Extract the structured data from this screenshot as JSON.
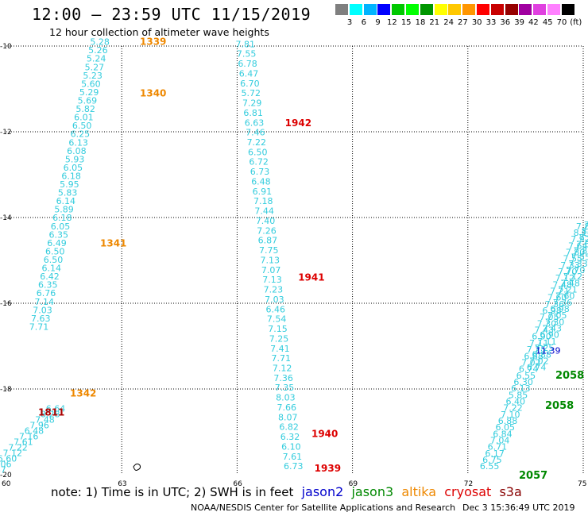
{
  "title": "12:00 – 23:59 UTC 11/15/2019",
  "subtitle": "12 hour collection of altimeter wave heights",
  "legend": {
    "colors": [
      "#7f7f7f",
      "#00ffff",
      "#00b4ff",
      "#0000ff",
      "#00c800",
      "#00ff00",
      "#009600",
      "#ffff00",
      "#ffc800",
      "#ff9600",
      "#ff0000",
      "#c80000",
      "#960000",
      "#a000a0",
      "#e040e0",
      "#ff80ff",
      "#000000"
    ],
    "labels": [
      "3",
      "6",
      "9",
      "12",
      "15",
      "18",
      "21",
      "24",
      "27",
      "30",
      "33",
      "36",
      "39",
      "42",
      "45",
      "70",
      "(ft)"
    ]
  },
  "map": {
    "lon_min": 60,
    "lon_max": 75,
    "lat_min": -20,
    "lat_max": -10,
    "x_ticks": [
      "60",
      "63",
      "66",
      "69",
      "72",
      "75"
    ],
    "y_ticks": [
      "-10",
      "-12",
      "-14",
      "-16",
      "-18",
      "-20"
    ],
    "grid_lons": [
      63,
      66,
      69,
      72
    ],
    "grid_lats": [
      -12,
      -14,
      -16,
      -18
    ]
  },
  "track_left": {
    "color": "#33ccdd",
    "labels": [
      "5.28",
      "5.26",
      "5.24",
      "5.27",
      "5.23",
      "5.60",
      "5.29",
      "5.69",
      "5.82",
      "6.01",
      "6.50",
      "6.25",
      "6.13",
      "6.08",
      "5.93",
      "6.05",
      "6.18",
      "5.95",
      "5.83",
      "6.14",
      "5.89",
      "6.18",
      "6.05",
      "6.35",
      "6.49",
      "6.50",
      "6.50",
      "6.14",
      "6.42",
      "6.35",
      "6.76",
      "7.14",
      "7.03",
      "7.63",
      "7.71",
      "6.64",
      "8.28",
      "7.48",
      "7.96",
      "6.48",
      "7.16",
      "7.61",
      "7.22",
      "7.12",
      "6.60",
      "8.06",
      "7.47"
    ],
    "time_labels": [
      {
        "text": "1339",
        "lat": -9.9,
        "color": "#ee8800"
      },
      {
        "text": "1340",
        "lat": -11.1,
        "color": "#ee8800"
      },
      {
        "text": "1341",
        "lat": -14.6,
        "color": "#ee8800"
      },
      {
        "text": "1342",
        "lat": -18.1,
        "color": "#ee8800"
      },
      {
        "text": "1811",
        "lat": -18.55,
        "color": "#aa0000"
      }
    ]
  },
  "track_mid": {
    "color": "#33ccdd",
    "labels": [
      "7.81",
      "7.55",
      "6.78",
      "6.47",
      "6.70",
      "5.72",
      "7.29",
      "6.81",
      "6.63",
      "7.46",
      "7.22",
      "6.50",
      "6.72",
      "6.73",
      "6.48",
      "6.91",
      "7.18",
      "7.44",
      "7.40",
      "7.26",
      "6.87",
      "7.75",
      "7.13",
      "7.07",
      "7.13",
      "7.23",
      "7.03",
      "6.46",
      "7.54",
      "7.15",
      "7.25",
      "7.41",
      "7.71",
      "7.12",
      "7.36",
      "7.35",
      "8.03",
      "7.66",
      "8.07",
      "6.82",
      "6.32",
      "6.10",
      "7.61",
      "6.73"
    ],
    "time_labels": [
      {
        "text": "1942",
        "lat": -11.8,
        "color": "#dd0000"
      },
      {
        "text": "1941",
        "lat": -15.4,
        "color": "#dd0000"
      },
      {
        "text": "1940",
        "lat": -19.05,
        "color": "#dd0000"
      },
      {
        "text": "1939",
        "lat": -19.85,
        "color": "#dd0000"
      }
    ]
  },
  "track_right": {
    "color": "#33ccdd",
    "labels": [
      "6.55",
      "6.75",
      "6.17",
      "6.71",
      "7.04",
      "6.84",
      "6.05",
      "6.88",
      "7.10",
      "7.22",
      "6.40",
      "5.85",
      "6.13",
      "6.30",
      "6.55",
      "6.74",
      "7.02",
      "6.88",
      "7.25",
      "7.11",
      "6.90",
      "7.43",
      "7.30",
      "7.05",
      "6.98",
      "7.36",
      "7.60",
      "7.21",
      "7.48",
      "7.12",
      "7.70",
      "7.33",
      "7.55",
      "7.80",
      "7.64",
      "7.92",
      "8.10",
      "7.85"
    ],
    "special": {
      "text": "11.39",
      "lat": -17.1,
      "color": "#0000cc"
    },
    "time_labels": [
      {
        "text": "2058",
        "lat": -17.75,
        "color": "#008800"
      },
      {
        "text": "2058",
        "lat": -18.4,
        "color": "#008800"
      },
      {
        "text": "2057",
        "lat": -19.8,
        "color": "#008800"
      }
    ]
  },
  "note": {
    "prefix": "note:  1) Time is in UTC;  2) SWH is in feet",
    "satellites": [
      {
        "name": "jason2",
        "color": "#0000cc"
      },
      {
        "name": "jason3",
        "color": "#008800"
      },
      {
        "name": "altika",
        "color": "#ee8800"
      },
      {
        "name": "cryosat",
        "color": "#dd0000"
      },
      {
        "name": "s3a",
        "color": "#880000"
      }
    ]
  },
  "footer": {
    "left": "NOAA/NESDIS Center for Satellite Applications and Research",
    "right": "Dec  3 15:36:49 UTC 2019"
  }
}
